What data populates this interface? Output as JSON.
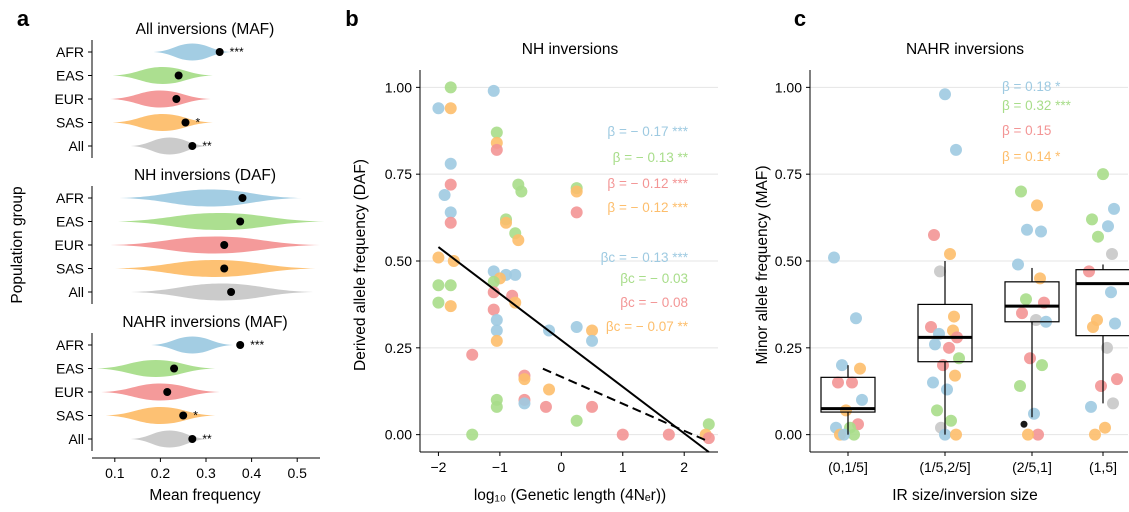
{
  "panel_letters": {
    "a": "a",
    "b": "b",
    "c": "c"
  },
  "colors": {
    "AFR": "#9ecae1",
    "EAS": "#a8dd8a",
    "EUR": "#f39595",
    "SAS": "#fdbe6c",
    "All": "#c8c8c8",
    "point": "#000000",
    "fitline": "#000000"
  },
  "chart_data": [
    {
      "id": "a",
      "type": "violin",
      "ylabel": "Population group",
      "xlabel": "Mean frequency",
      "xlim": [
        0.05,
        0.55
      ],
      "xticks": [
        "0.1",
        "0.2",
        "0.3",
        "0.4",
        "0.5"
      ],
      "xtick_values": [
        0.1,
        0.2,
        0.3,
        0.4,
        0.5
      ],
      "groups": [
        "AFR",
        "EAS",
        "EUR",
        "SAS",
        "All"
      ],
      "subpanels": [
        {
          "title": "All inversions (MAF)",
          "rows": [
            {
              "group": "AFR",
              "point": 0.33,
              "sig": "***",
              "center": 0.27,
              "halfwidth": 0.085
            },
            {
              "group": "EAS",
              "point": 0.24,
              "sig": "",
              "center": 0.205,
              "halfwidth": 0.11
            },
            {
              "group": "EUR",
              "point": 0.235,
              "sig": "",
              "center": 0.2,
              "halfwidth": 0.11
            },
            {
              "group": "SAS",
              "point": 0.255,
              "sig": "*",
              "center": 0.205,
              "halfwidth": 0.11
            },
            {
              "group": "All",
              "point": 0.27,
              "sig": "**",
              "center": 0.22,
              "halfwidth": 0.085
            }
          ]
        },
        {
          "title": "NH inversions (DAF)",
          "rows": [
            {
              "group": "AFR",
              "point": 0.38,
              "sig": "",
              "center": 0.31,
              "halfwidth": 0.2
            },
            {
              "group": "EAS",
              "point": 0.375,
              "sig": "",
              "center": 0.33,
              "halfwidth": 0.23
            },
            {
              "group": "EUR",
              "point": 0.34,
              "sig": "",
              "center": 0.32,
              "halfwidth": 0.23
            },
            {
              "group": "SAS",
              "point": 0.34,
              "sig": "",
              "center": 0.32,
              "halfwidth": 0.22
            },
            {
              "group": "All",
              "point": 0.355,
              "sig": "",
              "center": 0.335,
              "halfwidth": 0.2
            }
          ]
        },
        {
          "title": "NAHR inversions (MAF)",
          "rows": [
            {
              "group": "AFR",
              "point": 0.375,
              "sig": "***",
              "center": 0.27,
              "halfwidth": 0.09
            },
            {
              "group": "EAS",
              "point": 0.23,
              "sig": "",
              "center": 0.19,
              "halfwidth": 0.13
            },
            {
              "group": "EUR",
              "point": 0.215,
              "sig": "",
              "center": 0.2,
              "halfwidth": 0.13
            },
            {
              "group": "SAS",
              "point": 0.25,
              "sig": "*",
              "center": 0.2,
              "halfwidth": 0.12
            },
            {
              "group": "All",
              "point": 0.27,
              "sig": "**",
              "center": 0.22,
              "halfwidth": 0.085
            }
          ]
        }
      ]
    },
    {
      "id": "b",
      "type": "scatter",
      "title": "NH inversions",
      "ylabel": "Derived allele frequency (DAF)",
      "xlabel": "log₁₀ (Genetic length (4Nₑr))",
      "xlim": [
        -2.3,
        2.55
      ],
      "ylim": [
        -0.05,
        1.05
      ],
      "xticks": [
        "−2",
        "−1",
        "0",
        "1",
        "2"
      ],
      "xtick_values": [
        -2,
        -1,
        0,
        1,
        2
      ],
      "yticks": [
        "0.00",
        "0.25",
        "0.50",
        "0.75",
        "1.00"
      ],
      "ytick_values": [
        0,
        0.25,
        0.5,
        0.75,
        1
      ],
      "annotations": [
        {
          "text": "β = − 0.17 ***",
          "color": "AFR"
        },
        {
          "text": "β = − 0.13 **",
          "color": "EAS"
        },
        {
          "text": "β = − 0.12 ***",
          "color": "EUR"
        },
        {
          "text": "β = − 0.12 ***",
          "color": "SAS"
        },
        {
          "text": "βc = − 0.13 ***",
          "color": "AFR"
        },
        {
          "text": "βc = − 0.03",
          "color": "EAS"
        },
        {
          "text": "βc = − 0.08",
          "color": "EUR"
        },
        {
          "text": "βc = − 0.07 **",
          "color": "SAS"
        }
      ],
      "lines": [
        {
          "style": "solid",
          "x": [
            -2.0,
            2.4
          ],
          "y": [
            0.54,
            -0.05
          ]
        },
        {
          "style": "dashed",
          "x": [
            -0.3,
            2.4
          ],
          "y": [
            0.19,
            -0.02
          ]
        }
      ],
      "points": [
        {
          "x": -2.0,
          "y": 0.94,
          "c": "AFR"
        },
        {
          "x": -1.8,
          "y": 1.0,
          "c": "EAS"
        },
        {
          "x": -1.8,
          "y": 0.94,
          "c": "SAS"
        },
        {
          "x": -1.1,
          "y": 0.99,
          "c": "AFR"
        },
        {
          "x": -1.8,
          "y": 0.78,
          "c": "AFR"
        },
        {
          "x": -1.8,
          "y": 0.72,
          "c": "EUR"
        },
        {
          "x": -1.9,
          "y": 0.69,
          "c": "AFR"
        },
        {
          "x": -1.8,
          "y": 0.64,
          "c": "AFR"
        },
        {
          "x": -1.8,
          "y": 0.61,
          "c": "EUR"
        },
        {
          "x": -1.05,
          "y": 0.87,
          "c": "EAS"
        },
        {
          "x": -1.05,
          "y": 0.84,
          "c": "SAS"
        },
        {
          "x": -1.05,
          "y": 0.82,
          "c": "EUR"
        },
        {
          "x": -0.7,
          "y": 0.72,
          "c": "EAS"
        },
        {
          "x": -0.65,
          "y": 0.7,
          "c": "EAS"
        },
        {
          "x": 0.25,
          "y": 0.71,
          "c": "EAS"
        },
        {
          "x": 0.25,
          "y": 0.7,
          "c": "SAS"
        },
        {
          "x": 0.25,
          "y": 0.64,
          "c": "EUR"
        },
        {
          "x": -0.9,
          "y": 0.62,
          "c": "EAS"
        },
        {
          "x": -0.9,
          "y": 0.61,
          "c": "SAS"
        },
        {
          "x": -0.75,
          "y": 0.58,
          "c": "EAS"
        },
        {
          "x": -0.7,
          "y": 0.56,
          "c": "SAS"
        },
        {
          "x": -2.0,
          "y": 0.51,
          "c": "SAS"
        },
        {
          "x": -1.75,
          "y": 0.5,
          "c": "SAS"
        },
        {
          "x": -1.1,
          "y": 0.47,
          "c": "AFR"
        },
        {
          "x": -0.9,
          "y": 0.46,
          "c": "AFR"
        },
        {
          "x": -0.75,
          "y": 0.46,
          "c": "AFR"
        },
        {
          "x": -1.0,
          "y": 0.45,
          "c": "SAS"
        },
        {
          "x": -1.1,
          "y": 0.44,
          "c": "EAS"
        },
        {
          "x": -2.0,
          "y": 0.43,
          "c": "EAS"
        },
        {
          "x": -1.8,
          "y": 0.43,
          "c": "EAS"
        },
        {
          "x": -2.0,
          "y": 0.38,
          "c": "EAS"
        },
        {
          "x": -1.8,
          "y": 0.37,
          "c": "SAS"
        },
        {
          "x": -1.1,
          "y": 0.41,
          "c": "EUR"
        },
        {
          "x": -0.8,
          "y": 0.4,
          "c": "EUR"
        },
        {
          "x": -0.75,
          "y": 0.38,
          "c": "SAS"
        },
        {
          "x": -1.1,
          "y": 0.36,
          "c": "EUR"
        },
        {
          "x": -1.05,
          "y": 0.33,
          "c": "AFR"
        },
        {
          "x": -1.05,
          "y": 0.3,
          "c": "AFR"
        },
        {
          "x": -0.2,
          "y": 0.3,
          "c": "AFR"
        },
        {
          "x": 0.25,
          "y": 0.31,
          "c": "AFR"
        },
        {
          "x": 0.5,
          "y": 0.3,
          "c": "SAS"
        },
        {
          "x": 0.5,
          "y": 0.27,
          "c": "AFR"
        },
        {
          "x": -1.05,
          "y": 0.27,
          "c": "SAS"
        },
        {
          "x": -1.45,
          "y": 0.23,
          "c": "EUR"
        },
        {
          "x": -0.6,
          "y": 0.17,
          "c": "EUR"
        },
        {
          "x": -0.6,
          "y": 0.16,
          "c": "SAS"
        },
        {
          "x": -0.2,
          "y": 0.13,
          "c": "SAS"
        },
        {
          "x": -1.05,
          "y": 0.1,
          "c": "EAS"
        },
        {
          "x": -1.05,
          "y": 0.08,
          "c": "EAS"
        },
        {
          "x": -0.6,
          "y": 0.1,
          "c": "EUR"
        },
        {
          "x": -0.6,
          "y": 0.09,
          "c": "AFR"
        },
        {
          "x": -0.25,
          "y": 0.08,
          "c": "EUR"
        },
        {
          "x": 0.5,
          "y": 0.08,
          "c": "EUR"
        },
        {
          "x": 0.25,
          "y": 0.04,
          "c": "EAS"
        },
        {
          "x": 1.0,
          "y": 0.0,
          "c": "EUR"
        },
        {
          "x": 1.75,
          "y": 0.0,
          "c": "EUR"
        },
        {
          "x": 2.4,
          "y": 0.03,
          "c": "EAS"
        },
        {
          "x": 2.35,
          "y": 0.0,
          "c": "SAS"
        },
        {
          "x": -1.45,
          "y": 0.0,
          "c": "EAS"
        },
        {
          "x": 2.4,
          "y": -0.01,
          "c": "EUR"
        }
      ]
    },
    {
      "id": "c",
      "type": "box",
      "title": "NAHR inversions",
      "ylabel": "Minor allele frequency (MAF)",
      "xlabel": "IR size/inversion size",
      "categories": [
        "(0,1/5]",
        "(1/5,2/5]",
        "(2/5,1]",
        "(1,5]"
      ],
      "ylim": [
        -0.05,
        1.05
      ],
      "yticks": [
        "0.00",
        "0.25",
        "0.50",
        "0.75",
        "1.00"
      ],
      "ytick_values": [
        0,
        0.25,
        0.5,
        0.75,
        1
      ],
      "annotations": [
        {
          "text": "β = 0.18 *",
          "color": "AFR"
        },
        {
          "text": "β = 0.32 ***",
          "color": "EAS"
        },
        {
          "text": "β = 0.15",
          "color": "EUR"
        },
        {
          "text": "β = 0.14 *",
          "color": "SAS"
        }
      ],
      "boxes": [
        {
          "q1": 0.065,
          "median": 0.075,
          "q3": 0.165,
          "whislo": 0.0,
          "whishi": 0.2
        },
        {
          "q1": 0.21,
          "median": 0.28,
          "q3": 0.375,
          "whislo": 0.0,
          "whishi": 0.5
        },
        {
          "q1": 0.325,
          "median": 0.37,
          "q3": 0.44,
          "whislo": 0.05,
          "whishi": 0.48
        },
        {
          "q1": 0.285,
          "median": 0.435,
          "q3": 0.475,
          "whislo": 0.09,
          "whishi": 0.49
        }
      ],
      "points": [
        {
          "x": 0,
          "y": 0.51,
          "c": "AFR"
        },
        {
          "x": 0,
          "y": 0.335,
          "c": "AFR"
        },
        {
          "x": 0,
          "y": 0.2,
          "c": "AFR"
        },
        {
          "x": 0,
          "y": 0.19,
          "c": "SAS"
        },
        {
          "x": 0,
          "y": 0.15,
          "c": "EUR"
        },
        {
          "x": 0,
          "y": 0.15,
          "c": "EUR"
        },
        {
          "x": 0,
          "y": 0.1,
          "c": "AFR"
        },
        {
          "x": 0,
          "y": 0.07,
          "c": "SAS"
        },
        {
          "x": 0,
          "y": 0.03,
          "c": "EUR"
        },
        {
          "x": 0,
          "y": 0.02,
          "c": "AFR"
        },
        {
          "x": 0,
          "y": 0.02,
          "c": "EAS"
        },
        {
          "x": 0,
          "y": 0.0,
          "c": "SAS"
        },
        {
          "x": 0,
          "y": 0.0,
          "c": "EAS"
        },
        {
          "x": 0,
          "y": 0.0,
          "c": "AFR"
        },
        {
          "x": 1,
          "y": 0.98,
          "c": "AFR"
        },
        {
          "x": 1,
          "y": 0.82,
          "c": "AFR"
        },
        {
          "x": 1,
          "y": 0.575,
          "c": "EUR"
        },
        {
          "x": 1,
          "y": 0.52,
          "c": "SAS"
        },
        {
          "x": 1,
          "y": 0.47,
          "c": "All"
        },
        {
          "x": 1,
          "y": 0.34,
          "c": "SAS"
        },
        {
          "x": 1,
          "y": 0.31,
          "c": "EUR"
        },
        {
          "x": 1,
          "y": 0.3,
          "c": "SAS"
        },
        {
          "x": 1,
          "y": 0.29,
          "c": "AFR"
        },
        {
          "x": 1,
          "y": 0.28,
          "c": "EUR"
        },
        {
          "x": 1,
          "y": 0.26,
          "c": "AFR"
        },
        {
          "x": 1,
          "y": 0.25,
          "c": "EUR"
        },
        {
          "x": 1,
          "y": 0.22,
          "c": "EAS"
        },
        {
          "x": 1,
          "y": 0.2,
          "c": "EUR"
        },
        {
          "x": 1,
          "y": 0.17,
          "c": "SAS"
        },
        {
          "x": 1,
          "y": 0.15,
          "c": "AFR"
        },
        {
          "x": 1,
          "y": 0.13,
          "c": "AFR"
        },
        {
          "x": 1,
          "y": 0.07,
          "c": "EAS"
        },
        {
          "x": 1,
          "y": 0.04,
          "c": "EAS"
        },
        {
          "x": 1,
          "y": 0.02,
          "c": "All"
        },
        {
          "x": 1,
          "y": 0.0,
          "c": "AFR"
        },
        {
          "x": 1,
          "y": 0.0,
          "c": "SAS"
        },
        {
          "x": 2,
          "y": 0.7,
          "c": "EAS"
        },
        {
          "x": 2,
          "y": 0.66,
          "c": "SAS"
        },
        {
          "x": 2,
          "y": 0.59,
          "c": "AFR"
        },
        {
          "x": 2,
          "y": 0.585,
          "c": "AFR"
        },
        {
          "x": 2,
          "y": 0.49,
          "c": "AFR"
        },
        {
          "x": 2,
          "y": 0.45,
          "c": "SAS"
        },
        {
          "x": 2,
          "y": 0.39,
          "c": "EAS"
        },
        {
          "x": 2,
          "y": 0.38,
          "c": "EUR"
        },
        {
          "x": 2,
          "y": 0.35,
          "c": "EUR"
        },
        {
          "x": 2,
          "y": 0.33,
          "c": "All"
        },
        {
          "x": 2,
          "y": 0.325,
          "c": "AFR"
        },
        {
          "x": 2,
          "y": 0.22,
          "c": "EUR"
        },
        {
          "x": 2,
          "y": 0.2,
          "c": "EAS"
        },
        {
          "x": 2,
          "y": 0.14,
          "c": "EAS"
        },
        {
          "x": 2,
          "y": 0.06,
          "c": "AFR"
        },
        {
          "x": 2,
          "y": 0.03,
          "c": "point"
        },
        {
          "x": 2,
          "y": 0.0,
          "c": "EUR"
        },
        {
          "x": 2,
          "y": 0.0,
          "c": "SAS"
        },
        {
          "x": 3,
          "y": 0.75,
          "c": "EAS"
        },
        {
          "x": 3,
          "y": 0.65,
          "c": "AFR"
        },
        {
          "x": 3,
          "y": 0.62,
          "c": "EAS"
        },
        {
          "x": 3,
          "y": 0.6,
          "c": "AFR"
        },
        {
          "x": 3,
          "y": 0.57,
          "c": "EAS"
        },
        {
          "x": 3,
          "y": 0.52,
          "c": "All"
        },
        {
          "x": 3,
          "y": 0.47,
          "c": "EUR"
        },
        {
          "x": 3,
          "y": 0.41,
          "c": "AFR"
        },
        {
          "x": 3,
          "y": 0.33,
          "c": "SAS"
        },
        {
          "x": 3,
          "y": 0.32,
          "c": "AFR"
        },
        {
          "x": 3,
          "y": 0.31,
          "c": "SAS"
        },
        {
          "x": 3,
          "y": 0.25,
          "c": "All"
        },
        {
          "x": 3,
          "y": 0.16,
          "c": "EUR"
        },
        {
          "x": 3,
          "y": 0.14,
          "c": "EUR"
        },
        {
          "x": 3,
          "y": 0.09,
          "c": "All"
        },
        {
          "x": 3,
          "y": 0.08,
          "c": "AFR"
        },
        {
          "x": 3,
          "y": 0.02,
          "c": "SAS"
        },
        {
          "x": 3,
          "y": 0.0,
          "c": "SAS"
        }
      ]
    }
  ]
}
